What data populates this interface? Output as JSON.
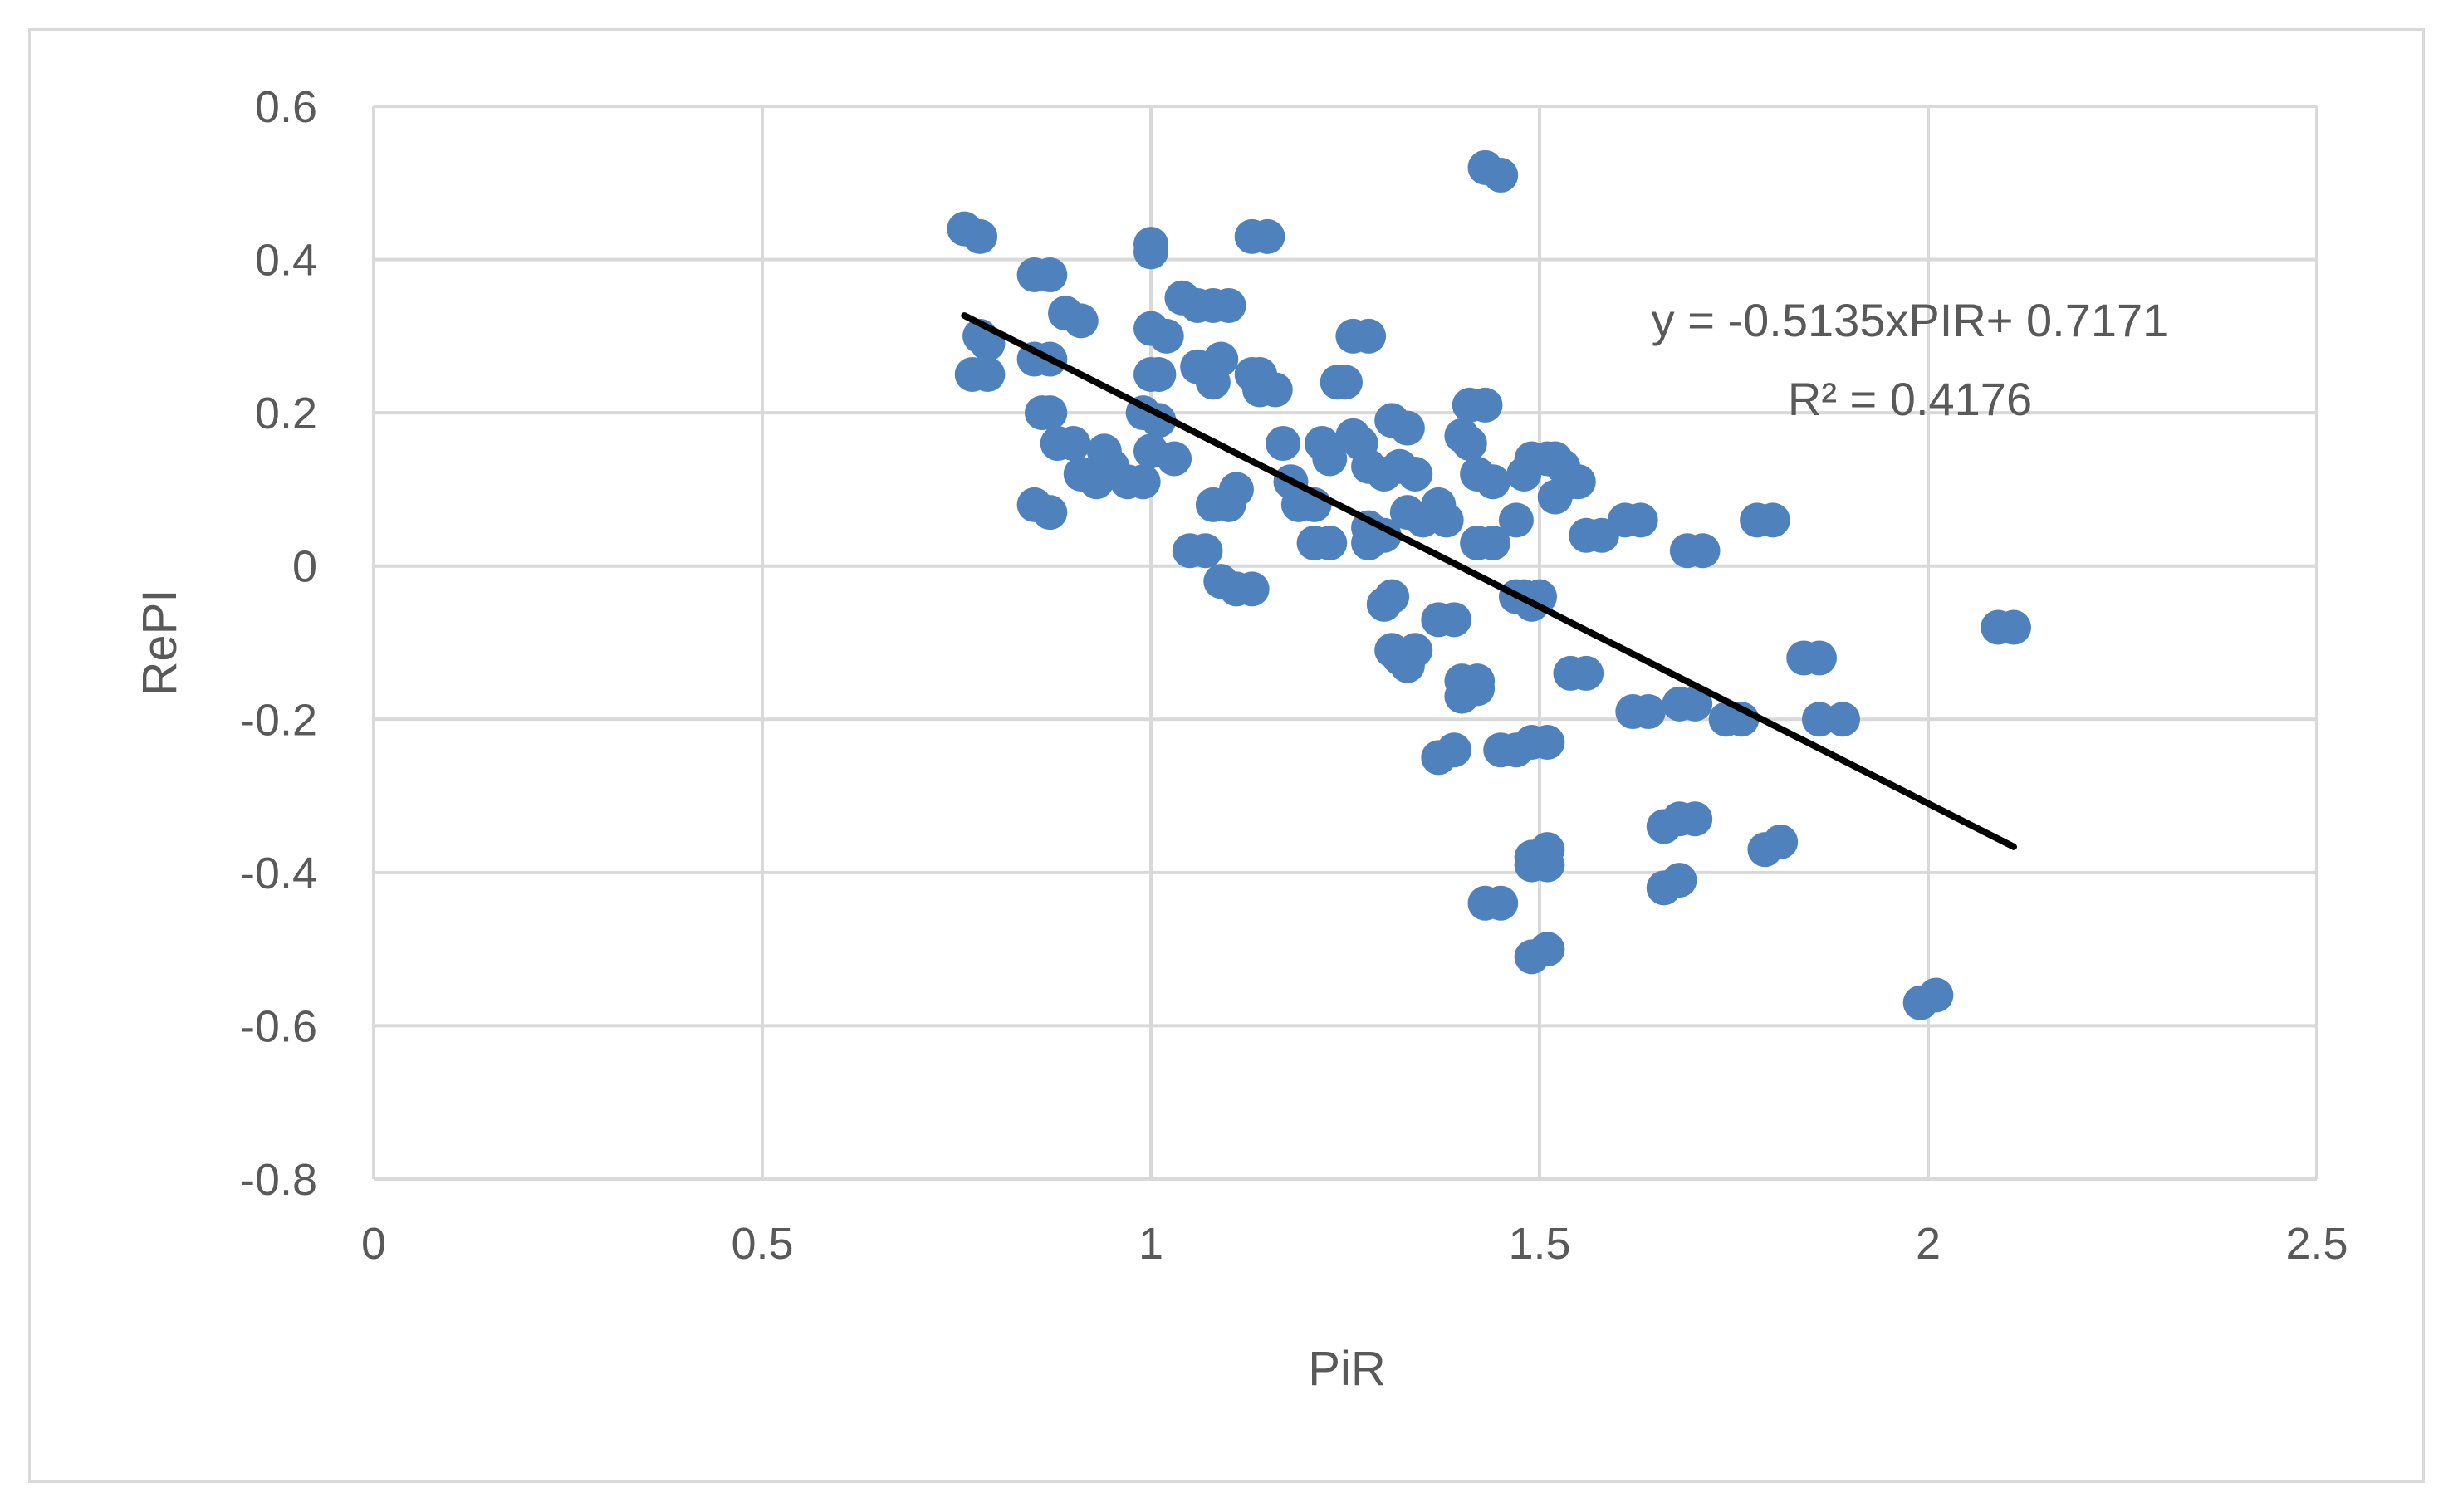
{
  "chart_data": {
    "type": "scatter",
    "xlabel": "PiR",
    "ylabel": "RePI",
    "xlim": [
      0,
      2.5
    ],
    "ylim": [
      -0.8,
      0.6
    ],
    "x_ticks": [
      "0",
      "0.5",
      "1",
      "1.5",
      "2",
      "2.5"
    ],
    "y_ticks": [
      "0.6",
      "0.4",
      "0.2",
      "0",
      "-0.2",
      "-0.4",
      "-0.6",
      "-0.8"
    ],
    "x_tick_values": [
      0,
      0.5,
      1,
      1.5,
      2,
      2.5
    ],
    "y_tick_values": [
      0.6,
      0.4,
      0.2,
      0,
      -0.2,
      -0.4,
      -0.6,
      -0.8
    ],
    "grid": true,
    "marker_color": "#4f81bd",
    "trendline_color": "#000000",
    "trendline": {
      "slope": -0.5135,
      "intercept": 0.7171,
      "x_start": 0.76,
      "x_end": 2.11
    },
    "annotation": {
      "line1": "y = -0.5135xPIR+ 0.7171",
      "line2": "R² = 0.4176"
    },
    "points": [
      [
        0.76,
        0.44
      ],
      [
        0.78,
        0.43
      ],
      [
        0.78,
        0.3
      ],
      [
        0.79,
        0.29
      ],
      [
        0.77,
        0.25
      ],
      [
        0.79,
        0.25
      ],
      [
        0.85,
        0.38
      ],
      [
        0.87,
        0.38
      ],
      [
        0.85,
        0.27
      ],
      [
        0.87,
        0.27
      ],
      [
        0.86,
        0.2
      ],
      [
        0.87,
        0.2
      ],
      [
        0.89,
        0.33
      ],
      [
        0.91,
        0.32
      ],
      [
        0.88,
        0.16
      ],
      [
        0.9,
        0.16
      ],
      [
        0.91,
        0.12
      ],
      [
        0.93,
        0.11
      ],
      [
        0.94,
        0.15
      ],
      [
        0.95,
        0.13
      ],
      [
        0.97,
        0.11
      ],
      [
        0.99,
        0.11
      ],
      [
        0.85,
        0.08
      ],
      [
        0.87,
        0.07
      ],
      [
        1.0,
        0.42
      ],
      [
        1.0,
        0.41
      ],
      [
        1.0,
        0.31
      ],
      [
        1.02,
        0.3
      ],
      [
        1.0,
        0.25
      ],
      [
        1.01,
        0.25
      ],
      [
        0.99,
        0.2
      ],
      [
        1.01,
        0.19
      ],
      [
        1.03,
        0.14
      ],
      [
        1.0,
        0.15
      ],
      [
        1.04,
        0.35
      ],
      [
        1.06,
        0.34
      ],
      [
        1.08,
        0.34
      ],
      [
        1.1,
        0.34
      ],
      [
        1.06,
        0.26
      ],
      [
        1.08,
        0.24
      ],
      [
        1.09,
        0.27
      ],
      [
        1.05,
        0.02
      ],
      [
        1.07,
        0.02
      ],
      [
        1.09,
        -0.02
      ],
      [
        1.11,
        -0.03
      ],
      [
        1.13,
        -0.03
      ],
      [
        1.08,
        0.08
      ],
      [
        1.1,
        0.08
      ],
      [
        1.11,
        0.1
      ],
      [
        1.13,
        0.43
      ],
      [
        1.15,
        0.43
      ],
      [
        1.13,
        0.25
      ],
      [
        1.14,
        0.25
      ],
      [
        1.16,
        0.23
      ],
      [
        1.14,
        0.23
      ],
      [
        1.17,
        0.16
      ],
      [
        1.18,
        0.11
      ],
      [
        1.19,
        0.08
      ],
      [
        1.21,
        0.08
      ],
      [
        1.21,
        0.03
      ],
      [
        1.23,
        0.03
      ],
      [
        1.22,
        0.16
      ],
      [
        1.23,
        0.14
      ],
      [
        1.24,
        0.24
      ],
      [
        1.25,
        0.24
      ],
      [
        1.26,
        0.3
      ],
      [
        1.28,
        0.3
      ],
      [
        1.26,
        0.17
      ],
      [
        1.27,
        0.16
      ],
      [
        1.28,
        0.13
      ],
      [
        1.3,
        0.12
      ],
      [
        1.28,
        0.05
      ],
      [
        1.3,
        0.04
      ],
      [
        1.28,
        0.03
      ],
      [
        1.3,
        -0.05
      ],
      [
        1.31,
        -0.04
      ],
      [
        1.31,
        -0.11
      ],
      [
        1.32,
        -0.12
      ],
      [
        1.33,
        -0.13
      ],
      [
        1.34,
        -0.11
      ],
      [
        1.31,
        0.19
      ],
      [
        1.33,
        0.18
      ],
      [
        1.32,
        0.13
      ],
      [
        1.34,
        0.12
      ],
      [
        1.33,
        0.07
      ],
      [
        1.35,
        0.06
      ],
      [
        1.37,
        0.08
      ],
      [
        1.38,
        0.06
      ],
      [
        1.37,
        -0.07
      ],
      [
        1.39,
        -0.07
      ],
      [
        1.4,
        -0.15
      ],
      [
        1.42,
        -0.15
      ],
      [
        1.4,
        -0.17
      ],
      [
        1.42,
        -0.16
      ],
      [
        1.37,
        -0.25
      ],
      [
        1.39,
        -0.24
      ],
      [
        1.4,
        0.17
      ],
      [
        1.41,
        0.16
      ],
      [
        1.41,
        0.21
      ],
      [
        1.43,
        0.21
      ],
      [
        1.42,
        0.12
      ],
      [
        1.44,
        0.11
      ],
      [
        1.42,
        0.03
      ],
      [
        1.44,
        0.03
      ],
      [
        1.43,
        0.52
      ],
      [
        1.45,
        0.51
      ],
      [
        1.45,
        -0.24
      ],
      [
        1.47,
        -0.24
      ],
      [
        1.43,
        -0.44
      ],
      [
        1.45,
        -0.44
      ],
      [
        1.47,
        0.06
      ],
      [
        1.48,
        0.12
      ],
      [
        1.49,
        0.14
      ],
      [
        1.51,
        0.14
      ],
      [
        1.47,
        -0.04
      ],
      [
        1.49,
        -0.05
      ],
      [
        1.48,
        -0.04
      ],
      [
        1.5,
        -0.04
      ],
      [
        1.49,
        -0.23
      ],
      [
        1.51,
        -0.23
      ],
      [
        1.49,
        -0.38
      ],
      [
        1.51,
        -0.37
      ],
      [
        1.49,
        -0.39
      ],
      [
        1.51,
        -0.39
      ],
      [
        1.49,
        -0.51
      ],
      [
        1.51,
        -0.5
      ],
      [
        1.52,
        0.14
      ],
      [
        1.53,
        0.13
      ],
      [
        1.52,
        0.09
      ],
      [
        1.54,
        0.11
      ],
      [
        1.55,
        0.11
      ],
      [
        1.54,
        -0.14
      ],
      [
        1.56,
        -0.14
      ],
      [
        1.56,
        0.04
      ],
      [
        1.58,
        0.04
      ],
      [
        1.61,
        0.06
      ],
      [
        1.63,
        0.06
      ],
      [
        1.62,
        -0.19
      ],
      [
        1.64,
        -0.19
      ],
      [
        1.66,
        -0.34
      ],
      [
        1.68,
        -0.33
      ],
      [
        1.7,
        -0.33
      ],
      [
        1.66,
        -0.42
      ],
      [
        1.68,
        -0.41
      ],
      [
        1.68,
        -0.18
      ],
      [
        1.7,
        -0.18
      ],
      [
        1.69,
        0.02
      ],
      [
        1.71,
        0.02
      ],
      [
        1.74,
        -0.2
      ],
      [
        1.76,
        -0.2
      ],
      [
        1.78,
        0.06
      ],
      [
        1.8,
        0.06
      ],
      [
        1.79,
        -0.37
      ],
      [
        1.81,
        -0.36
      ],
      [
        1.84,
        -0.12
      ],
      [
        1.86,
        -0.12
      ],
      [
        1.86,
        -0.2
      ],
      [
        1.89,
        -0.2
      ],
      [
        1.99,
        -0.57
      ],
      [
        2.01,
        -0.56
      ],
      [
        2.09,
        -0.08
      ],
      [
        2.11,
        -0.08
      ]
    ]
  }
}
